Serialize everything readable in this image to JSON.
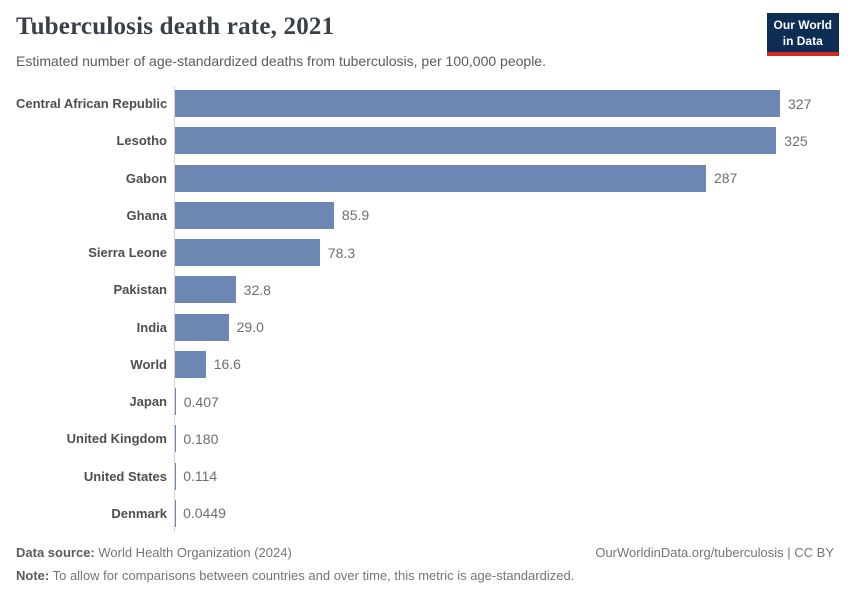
{
  "header": {
    "title": "Tuberculosis death rate, 2021",
    "subtitle": "Estimated number of age-standardized deaths from tuberculosis, per 100,000 people."
  },
  "logo": {
    "line1": "Our World",
    "line2": "in Data",
    "bg_color": "#0d2d55",
    "accent_color": "#d42b21"
  },
  "chart_data": {
    "type": "bar",
    "orientation": "horizontal",
    "title": "Tuberculosis death rate, 2021",
    "xlabel": "",
    "ylabel": "",
    "xlim": [
      0,
      327
    ],
    "grid": false,
    "legend": false,
    "bar_color": "#6c87b3",
    "axis_line_color": "#d4d4d4",
    "unit": "deaths per 100,000 people",
    "categories": [
      "Central African Republic",
      "Lesotho",
      "Gabon",
      "Ghana",
      "Sierra Leone",
      "Pakistan",
      "India",
      "World",
      "Japan",
      "United Kingdom",
      "United States",
      "Denmark"
    ],
    "values": [
      327,
      325,
      287,
      85.9,
      78.3,
      32.8,
      29.0,
      16.6,
      0.407,
      0.18,
      0.114,
      0.0449
    ],
    "value_labels": [
      "327",
      "325",
      "287",
      "85.9",
      "78.3",
      "32.8",
      "29.0",
      "16.6",
      "0.407",
      "0.180",
      "0.114",
      "0.0449"
    ]
  },
  "footer": {
    "datasource_label": "Data source:",
    "datasource_text": " World Health Organization (2024)",
    "note_label": "Note:",
    "note_text": " To allow for comparisons between countries and over time, this metric is age-standardized.",
    "link": "OurWorldinData.org/tuberculosis | CC BY"
  }
}
